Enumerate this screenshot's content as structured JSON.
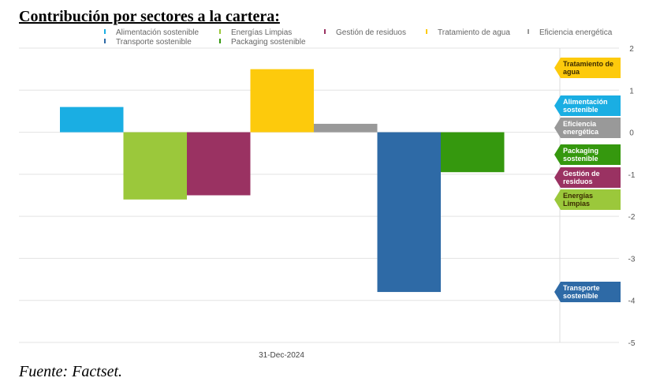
{
  "title": "Contribución por sectores a la cartera:",
  "source": "Fuente: Factset.",
  "chart_data": {
    "type": "bar",
    "categories": [
      "31-Dec-2024"
    ],
    "series": [
      {
        "name": "Alimentación sostenible",
        "values": [
          0.6
        ],
        "color": "#1aaee3"
      },
      {
        "name": "Energías Limpias",
        "values": [
          -1.6
        ],
        "color": "#9bc83b"
      },
      {
        "name": "Gestión de residuos",
        "values": [
          -1.5
        ],
        "color": "#9a3262"
      },
      {
        "name": "Tratamiento de agua",
        "values": [
          1.5
        ],
        "color": "#fdca0c"
      },
      {
        "name": "Eficiencia energética",
        "values": [
          0.2
        ],
        "color": "#999999"
      },
      {
        "name": "Transporte sostenible",
        "values": [
          -3.8
        ],
        "color": "#2e6aa6"
      },
      {
        "name": "Packaging sostenible",
        "values": [
          -0.95
        ],
        "color": "#35980e"
      }
    ],
    "legend_position": "top",
    "yaxis_position": "right",
    "ylim": [
      -5,
      2
    ],
    "yticks": [
      "2",
      "1",
      "0",
      "-1",
      "-2",
      "-3",
      "-4",
      "-5"
    ],
    "grid": true,
    "end_labels": [
      {
        "lines": [
          "Tratamiento de",
          "agua"
        ],
        "color": "#fdca0c",
        "text_color": "#3a2a00"
      },
      {
        "lines": [
          "Alimentación",
          "sostenible"
        ],
        "color": "#1aaee3",
        "text_color": "#ffffff"
      },
      {
        "lines": [
          "Eficiencia",
          "energética"
        ],
        "color": "#999999",
        "text_color": "#ffffff"
      },
      {
        "lines": [
          "Packaging",
          "sostenible"
        ],
        "color": "#35980e",
        "text_color": "#ffffff"
      },
      {
        "lines": [
          "Gestión de",
          "residuos"
        ],
        "color": "#9a3262",
        "text_color": "#ffffff"
      },
      {
        "lines": [
          "Energías",
          "Limpias"
        ],
        "color": "#9bc83b",
        "text_color": "#3a2a00"
      },
      {
        "lines": [
          "Transporte",
          "sostenible"
        ],
        "color": "#2e6aa6",
        "text_color": "#ffffff"
      }
    ]
  }
}
